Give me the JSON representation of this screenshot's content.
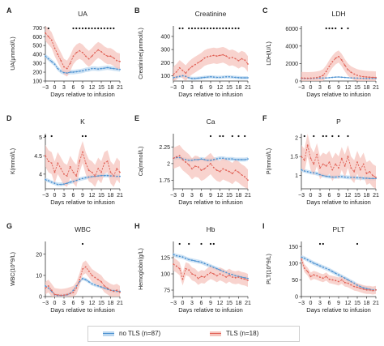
{
  "colors": {
    "no_tls": "#4a90d0",
    "no_tls_band": "#bcd8f0",
    "tls": "#e06055",
    "tls_band": "#f6c4bd"
  },
  "legend": {
    "items": [
      {
        "label": "no TLS (n=87)",
        "color": "#4a90d0",
        "band": "#bcd8f0"
      },
      {
        "label": "TLS (n=18)",
        "color": "#e06055",
        "band": "#f6c4bd"
      }
    ]
  },
  "chart_data": [
    {
      "type": "line",
      "letter": "A",
      "title": "UA",
      "ylabel": "UA(μmmol/L)",
      "xlabel": "Days relative to infusion",
      "x": [
        -3,
        -2,
        -1,
        0,
        1,
        2,
        3,
        4,
        5,
        6,
        7,
        8,
        9,
        10,
        11,
        12,
        13,
        14,
        15,
        16,
        17,
        18,
        19,
        20,
        21
      ],
      "xticks": [
        -3,
        0,
        3,
        6,
        9,
        12,
        15,
        18,
        21
      ],
      "ylim": [
        100,
        720
      ],
      "yticks": [
        100,
        200,
        300,
        400,
        500,
        600,
        700
      ],
      "series": [
        {
          "name": "no TLS (n=87)",
          "values": [
            380,
            350,
            320,
            290,
            240,
            210,
            195,
            190,
            200,
            200,
            205,
            210,
            215,
            225,
            230,
            240,
            240,
            235,
            240,
            245,
            250,
            245,
            240,
            235,
            230
          ],
          "band": 25
        },
        {
          "name": "TLS (n=18)",
          "values": [
            640,
            600,
            560,
            470,
            400,
            330,
            260,
            240,
            300,
            380,
            420,
            440,
            420,
            380,
            350,
            380,
            420,
            450,
            430,
            400,
            380,
            380,
            360,
            330,
            320
          ],
          "band": 90
        }
      ],
      "sig_days": [
        -2,
        6,
        7,
        8,
        9,
        10,
        11,
        12,
        13,
        14,
        15,
        16,
        17,
        18,
        19
      ]
    },
    {
      "type": "line",
      "letter": "B",
      "title": "Creatinine",
      "ylabel": "Creatinine(μmmol/L)",
      "xlabel": "Days relative to infusion",
      "x": [
        -3,
        -2,
        -1,
        0,
        1,
        2,
        3,
        4,
        5,
        6,
        7,
        8,
        9,
        10,
        11,
        12,
        13,
        14,
        15,
        16,
        17,
        18,
        19,
        20,
        21
      ],
      "xticks": [
        -3,
        0,
        3,
        6,
        9,
        12,
        15,
        18,
        21
      ],
      "ylim": [
        60,
        480
      ],
      "yticks": [
        100,
        200,
        300,
        400
      ],
      "series": [
        {
          "name": "no TLS (n=87)",
          "values": [
            85,
            90,
            95,
            100,
            95,
            85,
            80,
            80,
            82,
            85,
            88,
            90,
            92,
            90,
            88,
            88,
            90,
            92,
            92,
            90,
            88,
            86,
            85,
            85,
            85
          ],
          "band": 12
        },
        {
          "name": "TLS (n=18)",
          "values": [
            110,
            130,
            160,
            140,
            120,
            150,
            170,
            185,
            200,
            215,
            235,
            245,
            250,
            255,
            250,
            255,
            260,
            250,
            235,
            240,
            230,
            215,
            230,
            220,
            190
          ],
          "band": 60
        }
      ],
      "sig_days": [
        -1,
        0,
        2,
        3,
        4,
        5,
        6,
        7,
        8,
        9,
        10,
        11,
        12,
        13,
        14,
        15,
        16,
        17,
        18
      ]
    },
    {
      "type": "line",
      "letter": "C",
      "title": "LDH",
      "ylabel": "LDH(U/L)",
      "xlabel": "Days relative to infusion",
      "x": [
        -3,
        -2,
        -1,
        0,
        1,
        2,
        3,
        4,
        5,
        6,
        7,
        8,
        9,
        10,
        11,
        12,
        13,
        14,
        15,
        16,
        17,
        18,
        19,
        20,
        21
      ],
      "xticks": [
        -3,
        0,
        3,
        6,
        9,
        12,
        15,
        18,
        21
      ],
      "ylim": [
        0,
        6300
      ],
      "yticks": [
        0,
        2000,
        4000,
        6000
      ],
      "series": [
        {
          "name": "no TLS (n=87)",
          "values": [
            320,
            300,
            290,
            290,
            300,
            320,
            330,
            340,
            350,
            380,
            420,
            450,
            460,
            440,
            410,
            380,
            360,
            340,
            330,
            320,
            310,
            300,
            300,
            300,
            300
          ],
          "band": 60
        },
        {
          "name": "TLS (n=18)",
          "values": [
            350,
            330,
            320,
            330,
            360,
            400,
            480,
            650,
            1100,
            1700,
            2200,
            2600,
            2800,
            2400,
            1800,
            1300,
            1000,
            800,
            650,
            560,
            500,
            460,
            440,
            420,
            400
          ],
          "band": 700
        }
      ],
      "sig_days": [
        5,
        6,
        7,
        8,
        10,
        12
      ]
    },
    {
      "type": "line",
      "letter": "D",
      "title": "K",
      "ylabel": "K(mmol/L)",
      "xlabel": "Days relative to infusion",
      "x": [
        -3,
        -2,
        -1,
        0,
        1,
        2,
        3,
        4,
        5,
        6,
        7,
        8,
        9,
        10,
        11,
        12,
        13,
        14,
        15,
        16,
        17,
        18,
        19,
        20,
        21
      ],
      "xticks": [
        -3,
        0,
        3,
        6,
        9,
        12,
        15,
        18,
        21
      ],
      "ylim": [
        3.6,
        5.1
      ],
      "yticks": [
        4.0,
        4.5,
        5.0
      ],
      "series": [
        {
          "name": "no TLS (n=87)",
          "values": [
            3.85,
            3.82,
            3.78,
            3.75,
            3.72,
            3.72,
            3.73,
            3.75,
            3.78,
            3.8,
            3.83,
            3.86,
            3.88,
            3.9,
            3.92,
            3.93,
            3.94,
            3.95,
            3.96,
            3.96,
            3.96,
            3.95,
            3.95,
            3.94,
            3.94
          ],
          "band": 0.05
        },
        {
          "name": "TLS (n=18)",
          "values": [
            4.5,
            4.35,
            4.3,
            4.05,
            4.3,
            4.15,
            4.0,
            3.95,
            4.2,
            4.05,
            3.95,
            4.35,
            4.6,
            4.3,
            4.1,
            4.05,
            3.95,
            4.15,
            4.05,
            4.3,
            4.35,
            4.05,
            3.95,
            4.15,
            4.05
          ],
          "band": 0.3
        }
      ],
      "sig_days": [
        -3,
        -1,
        9,
        10
      ]
    },
    {
      "type": "line",
      "letter": "E",
      "title": "Ca",
      "ylabel": "Ca(mmol/L)",
      "xlabel": "Days relative to infusion",
      "x": [
        -3,
        -2,
        -1,
        0,
        1,
        2,
        3,
        4,
        5,
        6,
        7,
        8,
        9,
        10,
        11,
        12,
        13,
        14,
        15,
        16,
        17,
        18,
        19,
        20,
        21
      ],
      "xticks": [
        -3,
        0,
        3,
        6,
        9,
        12,
        15,
        18,
        21
      ],
      "ylim": [
        1.62,
        2.45
      ],
      "yticks": [
        1.75,
        2.0,
        2.25
      ],
      "series": [
        {
          "name": "no TLS (n=87)",
          "values": [
            2.08,
            2.09,
            2.09,
            2.07,
            2.06,
            2.05,
            2.05,
            2.06,
            2.06,
            2.07,
            2.06,
            2.05,
            2.05,
            2.06,
            2.07,
            2.08,
            2.08,
            2.07,
            2.07,
            2.07,
            2.06,
            2.06,
            2.06,
            2.06,
            2.07
          ],
          "band": 0.03
        },
        {
          "name": "TLS (n=18)",
          "values": [
            2.08,
            2.1,
            2.12,
            2.06,
            2.02,
            1.98,
            1.92,
            1.96,
            1.95,
            1.9,
            1.92,
            1.96,
            2.0,
            1.94,
            1.9,
            1.88,
            1.92,
            1.9,
            1.88,
            1.85,
            1.9,
            1.87,
            1.83,
            1.8,
            1.75
          ],
          "band": 0.16
        }
      ],
      "sig_days": [
        9,
        12,
        13,
        16,
        18,
        20
      ]
    },
    {
      "type": "line",
      "letter": "F",
      "title": "P",
      "ylabel": "P(mmol/L)",
      "xlabel": "Days relative to infusion",
      "x": [
        -3,
        -2,
        -1,
        0,
        1,
        2,
        3,
        4,
        5,
        6,
        7,
        8,
        9,
        10,
        11,
        12,
        13,
        14,
        15,
        16,
        17,
        18,
        19,
        20,
        21
      ],
      "xticks": [
        -3,
        0,
        3,
        6,
        9,
        12,
        15,
        18,
        21
      ],
      "ylim": [
        0.65,
        2.1
      ],
      "yticks": [
        1.0,
        1.5,
        2.0
      ],
      "series": [
        {
          "name": "no TLS (n=87)",
          "values": [
            1.15,
            1.12,
            1.1,
            1.08,
            1.07,
            1.05,
            1.02,
            1.0,
            0.98,
            0.97,
            0.96,
            0.96,
            0.97,
            0.97,
            0.96,
            0.95,
            0.95,
            0.95,
            0.94,
            0.94,
            0.93,
            0.93,
            0.92,
            0.92,
            0.92
          ],
          "band": 0.05
        },
        {
          "name": "TLS (n=18)",
          "values": [
            1.5,
            1.4,
            1.8,
            1.45,
            1.3,
            1.55,
            1.2,
            1.3,
            1.25,
            1.35,
            1.15,
            1.3,
            1.2,
            1.45,
            1.25,
            1.5,
            1.2,
            1.1,
            1.35,
            1.15,
            1.3,
            1.05,
            1.1,
            1.0,
            0.95
          ],
          "band": 0.3
        }
      ],
      "sig_days": [
        -2,
        1,
        4,
        5,
        7,
        9,
        12
      ]
    },
    {
      "type": "line",
      "letter": "G",
      "title": "WBC",
      "ylabel": "WBC(10^9/L)",
      "xlabel": "Days relative to infusion",
      "x": [
        -3,
        -2,
        -1,
        0,
        1,
        2,
        3,
        4,
        5,
        6,
        7,
        8,
        9,
        10,
        11,
        12,
        13,
        14,
        15,
        16,
        17,
        18,
        19,
        20,
        21
      ],
      "xticks": [
        -3,
        0,
        3,
        6,
        9,
        12,
        15,
        18,
        21
      ],
      "ylim": [
        0,
        26
      ],
      "yticks": [
        0,
        10,
        20
      ],
      "series": [
        {
          "name": "no TLS (n=87)",
          "values": [
            5,
            4,
            2.5,
            0.8,
            0.5,
            0.5,
            0.6,
            0.8,
            1.5,
            3,
            5,
            7,
            8.5,
            8,
            7,
            6,
            5.5,
            5,
            4.5,
            4,
            3.5,
            3,
            2.8,
            2.5,
            2.5
          ],
          "band": 0.8
        },
        {
          "name": "TLS (n=18)",
          "values": [
            4,
            5,
            3,
            1,
            0.8,
            0.6,
            0.7,
            1,
            1.5,
            2,
            4,
            8,
            13,
            14,
            12,
            10,
            9,
            8,
            7,
            5,
            4,
            3,
            2.5,
            3,
            2
          ],
          "band": 3
        }
      ],
      "sig_days": [
        9
      ]
    },
    {
      "type": "line",
      "letter": "H",
      "title": "Hb",
      "ylabel": "Hemoglobin(g/L)",
      "xlabel": "Days relative to infusion",
      "x": [
        -3,
        -2,
        -1,
        0,
        1,
        2,
        3,
        4,
        5,
        6,
        7,
        8,
        9,
        10,
        11,
        12,
        13,
        14,
        15,
        16,
        17,
        18,
        19,
        20,
        21
      ],
      "xticks": [
        -3,
        0,
        3,
        6,
        9,
        12,
        15,
        18,
        21
      ],
      "ylim": [
        65,
        150
      ],
      "yticks": [
        75,
        100,
        125
      ],
      "series": [
        {
          "name": "no TLS (n=87)",
          "values": [
            130,
            128,
            127,
            126,
            124,
            122,
            121,
            120,
            119,
            118,
            116,
            114,
            112,
            110,
            108,
            106,
            104,
            102,
            100,
            99,
            97,
            96,
            95,
            94,
            93
          ],
          "band": 3
        },
        {
          "name": "TLS (n=18)",
          "values": [
            115,
            112,
            108,
            92,
            108,
            106,
            100,
            98,
            93,
            96,
            95,
            99,
            102,
            100,
            97,
            100,
            98,
            95,
            98,
            95,
            94,
            95,
            93,
            92,
            90
          ],
          "band": 10
        }
      ],
      "sig_days": [
        -1,
        2,
        6,
        9,
        10
      ]
    },
    {
      "type": "line",
      "letter": "I",
      "title": "PLT",
      "ylabel": "PLT(10^9/L)",
      "xlabel": "Days relative to infusion",
      "x": [
        -3,
        -2,
        -1,
        0,
        1,
        2,
        3,
        4,
        5,
        6,
        7,
        8,
        9,
        10,
        11,
        12,
        13,
        14,
        15,
        16,
        17,
        18,
        19,
        20,
        21
      ],
      "xticks": [
        -3,
        0,
        3,
        6,
        9,
        12,
        15,
        18,
        21
      ],
      "ylim": [
        0,
        165
      ],
      "yticks": [
        0,
        50,
        100,
        150
      ],
      "series": [
        {
          "name": "no TLS (n=87)",
          "values": [
            118,
            115,
            110,
            105,
            100,
            96,
            92,
            88,
            84,
            80,
            75,
            70,
            65,
            60,
            55,
            50,
            45,
            40,
            34,
            30,
            26,
            24,
            22,
            20,
            20
          ],
          "band": 6
        },
        {
          "name": "TLS (n=18)",
          "values": [
            112,
            85,
            75,
            60,
            65,
            62,
            58,
            55,
            60,
            52,
            50,
            48,
            45,
            50,
            42,
            40,
            35,
            30,
            28,
            25,
            22,
            20,
            20,
            18,
            20
          ],
          "band": 12
        }
      ],
      "sig_days": [
        3,
        4,
        15
      ]
    }
  ]
}
